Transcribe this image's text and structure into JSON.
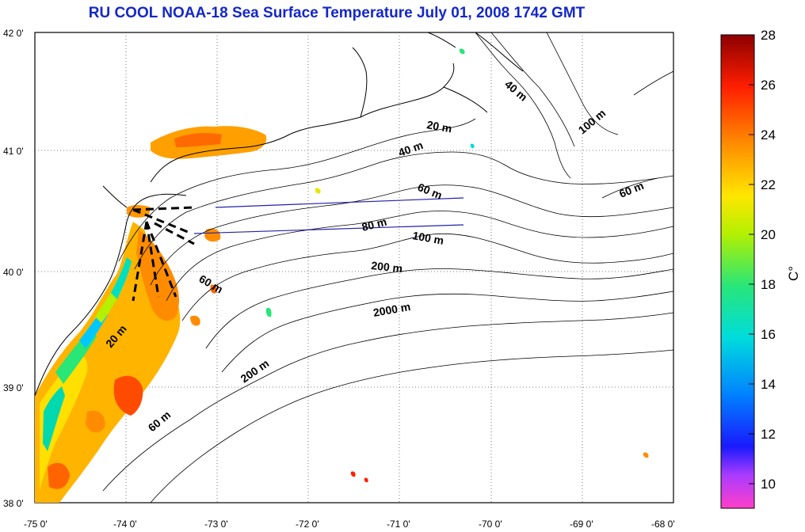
{
  "title": "RU COOL  NOAA-18 Sea Surface Temperature July 01, 2008 1742 GMT",
  "map": {
    "lon_range": [
      -75,
      -68
    ],
    "lat_range": [
      38,
      42
    ],
    "lon_ticks": [
      {
        "value": -75,
        "label": "-75 0'"
      },
      {
        "value": -74,
        "label": "-74 0'"
      },
      {
        "value": -73,
        "label": "-73 0'"
      },
      {
        "value": -72,
        "label": "-72 0'"
      },
      {
        "value": -71,
        "label": "-71 0'"
      },
      {
        "value": -70,
        "label": "-70 0'"
      },
      {
        "value": -69,
        "label": "-69 0'"
      },
      {
        "value": -68,
        "label": "-68 0'"
      }
    ],
    "lat_ticks": [
      {
        "value": 42,
        "label": "42 0'"
      },
      {
        "value": 41,
        "label": "41 0'"
      },
      {
        "value": 40,
        "label": "40 0'"
      },
      {
        "value": 39,
        "label": "39 0'"
      },
      {
        "value": 38,
        "label": "38 0'"
      }
    ],
    "grid": "dotted",
    "isobath_labels": [
      "20 m",
      "40 m",
      "40 m",
      "100 m",
      "60 m",
      "60 m",
      "80 m",
      "100 m",
      "200 m",
      "60 m",
      "2000 m",
      "20 m",
      "200 m",
      "60 m"
    ],
    "transect_color": "#2222aa"
  },
  "colorbar": {
    "unit": "C°",
    "min": 9,
    "max": 28,
    "ticks": [
      "28",
      "26",
      "24",
      "22",
      "20",
      "18",
      "16",
      "14",
      "12",
      "10"
    ],
    "tick_values": [
      28,
      26,
      24,
      22,
      20,
      18,
      16,
      14,
      12,
      10
    ],
    "colormap": [
      "#ff3ec8",
      "#aa3cff",
      "#1a1aff",
      "#0082ff",
      "#00dcdc",
      "#28e678",
      "#b4f000",
      "#ffe600",
      "#ff8c00",
      "#ff1e00",
      "#8c0000"
    ]
  }
}
